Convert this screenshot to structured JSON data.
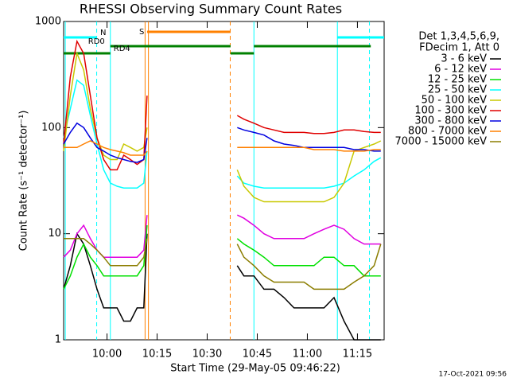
{
  "chart_data": {
    "type": "line",
    "title": "RHESSI Observing Summary Count Rates",
    "xlabel": "Start Time (29-May-05 09:46:22)",
    "ylabel": "Count Rate (s⁻¹ detector⁻¹)",
    "footer": "17-Oct-2021 09:56",
    "legend_title": [
      "Det 1,3,4,5,6,9,",
      "FDecim 1, Att 0"
    ],
    "log_y": true,
    "xlim": [
      587,
      683
    ],
    "xticks": [
      {
        "value": 600,
        "label": "10:00"
      },
      {
        "value": 615,
        "label": "10:15"
      },
      {
        "value": 630,
        "label": "10:30"
      },
      {
        "value": 645,
        "label": "10:45"
      },
      {
        "value": 660,
        "label": "11:00"
      },
      {
        "value": 675,
        "label": "11:15"
      }
    ],
    "ylim": [
      1,
      1000
    ],
    "yticks": [
      1,
      10,
      100,
      1000
    ],
    "x": [
      587,
      589,
      591,
      593,
      595,
      597,
      599,
      601,
      603,
      605,
      607,
      609,
      611,
      612,
      625,
      639,
      641,
      644,
      647,
      650,
      653,
      656,
      659,
      662,
      665,
      668,
      671,
      674,
      677,
      680,
      682
    ],
    "series": [
      {
        "name": "3 - 6 keV",
        "color": "#000000",
        "values": [
          3,
          5,
          10,
          8,
          5,
          3,
          2,
          2,
          2,
          1.5,
          1.5,
          2,
          2,
          10,
          null,
          5,
          4,
          4,
          3,
          3,
          2.5,
          2,
          2,
          2,
          2,
          2.5,
          1.5,
          1,
          1,
          1,
          1
        ]
      },
      {
        "name": "6 - 12 keV",
        "color": "#e000e0",
        "values": [
          6,
          7,
          10,
          12,
          9,
          7,
          6,
          6,
          6,
          6,
          6,
          6,
          7,
          15,
          null,
          15,
          14,
          12,
          10,
          9,
          9,
          9,
          9,
          10,
          11,
          12,
          11,
          9,
          8,
          8,
          8
        ]
      },
      {
        "name": "12 - 25 keV",
        "color": "#00e000",
        "values": [
          3,
          4,
          6,
          8,
          6,
          5,
          4,
          4,
          4,
          4,
          4,
          4,
          5,
          12,
          null,
          9,
          8,
          7,
          6,
          5,
          5,
          5,
          5,
          5,
          6,
          6,
          5,
          5,
          4,
          4,
          4
        ]
      },
      {
        "name": "25 - 50 keV",
        "color": "#00ffff",
        "values": [
          80,
          150,
          280,
          250,
          130,
          70,
          40,
          30,
          28,
          27,
          27,
          27,
          30,
          60,
          null,
          35,
          30,
          28,
          27,
          27,
          27,
          27,
          27,
          27,
          27,
          28,
          30,
          35,
          40,
          48,
          52
        ]
      },
      {
        "name": "50 - 100 keV",
        "color": "#c8c800",
        "values": [
          60,
          200,
          500,
          350,
          150,
          80,
          55,
          50,
          50,
          70,
          65,
          60,
          65,
          100,
          null,
          40,
          28,
          22,
          20,
          20,
          20,
          20,
          20,
          20,
          20,
          22,
          30,
          60,
          65,
          70,
          75
        ]
      },
      {
        "name": "100 - 300 keV",
        "color": "#e00000",
        "values": [
          70,
          300,
          650,
          500,
          200,
          80,
          50,
          40,
          40,
          55,
          50,
          45,
          50,
          200,
          null,
          130,
          120,
          110,
          100,
          95,
          90,
          90,
          90,
          88,
          88,
          90,
          95,
          95,
          92,
          90,
          90
        ]
      },
      {
        "name": "300 - 800 keV",
        "color": "#0000e0",
        "values": [
          70,
          90,
          110,
          100,
          80,
          65,
          60,
          55,
          52,
          50,
          48,
          47,
          50,
          80,
          null,
          100,
          95,
          90,
          85,
          75,
          70,
          68,
          65,
          65,
          65,
          65,
          65,
          62,
          62,
          60,
          60
        ]
      },
      {
        "name": "800 - 7000 keV",
        "color": "#ff8000",
        "values": [
          65,
          65,
          65,
          70,
          75,
          70,
          65,
          62,
          60,
          58,
          55,
          55,
          55,
          60,
          null,
          65,
          65,
          65,
          65,
          65,
          65,
          65,
          65,
          62,
          62,
          62,
          60,
          60,
          60,
          62,
          62
        ]
      },
      {
        "name": "7000 - 15000 keV",
        "color": "#8b7d00",
        "values": [
          9,
          9,
          9,
          9,
          8,
          7,
          6,
          5,
          5,
          5,
          5,
          5,
          6,
          9,
          null,
          8,
          6,
          5,
          4,
          3.5,
          3.5,
          3.5,
          3.5,
          3,
          3,
          3,
          3,
          3.5,
          4,
          5,
          8
        ]
      }
    ],
    "flags": [
      {
        "label": "S",
        "color": "#ff8000",
        "intervals": [
          [
            612,
            637
          ]
        ]
      },
      {
        "label": "N",
        "color": "#00ffff",
        "intervals": [
          [
            587,
            597
          ],
          [
            669,
            683
          ]
        ]
      },
      {
        "label": "RD0",
        "color": "#008000",
        "intervals": [
          [
            601,
            637
          ],
          [
            644,
            679
          ]
        ]
      },
      {
        "label": "RD4",
        "color": "#008000",
        "intervals": [
          [
            587,
            601
          ],
          [
            637,
            644
          ]
        ]
      }
    ],
    "vlines": [
      {
        "x": 587.5,
        "color": "#00ffff",
        "dashed": false
      },
      {
        "x": 596.9,
        "color": "#00ffff",
        "dashed": true
      },
      {
        "x": 601,
        "color": "#00ffff",
        "dashed": false
      },
      {
        "x": 611.4,
        "color": "#ff8000",
        "dashed": false
      },
      {
        "x": 612.4,
        "color": "#ff8000",
        "dashed": false
      },
      {
        "x": 636.9,
        "color": "#ff8000",
        "dashed": true
      },
      {
        "x": 644,
        "color": "#00ffff",
        "dashed": false
      },
      {
        "x": 669,
        "color": "#00ffff",
        "dashed": false
      },
      {
        "x": 678.6,
        "color": "#00ffff",
        "dashed": true
      }
    ]
  }
}
